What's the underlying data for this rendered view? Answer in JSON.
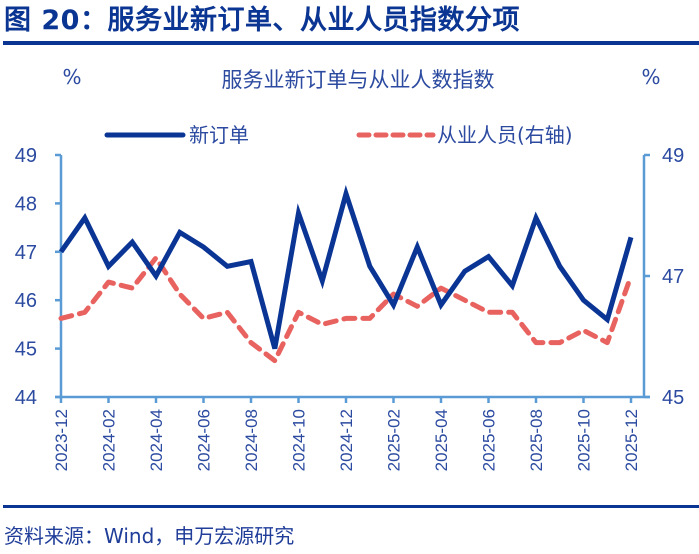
{
  "figure": {
    "title": "图 20：服务业新订单、从业人员指数分项",
    "source": "资料来源：Wind，申万宏源研究",
    "colors": {
      "brand": "#0b3592",
      "axis": "#5b9bd5",
      "text": "#2b4aa0"
    }
  },
  "chart_data": {
    "type": "line",
    "title": "服务业新订单与从业人数指数",
    "xlabel": "",
    "ylabel": "%",
    "ylabel_right": "%",
    "ylim": [
      44,
      49
    ],
    "ylim_right": [
      45,
      49
    ],
    "yticks": [
      44,
      45,
      46,
      47,
      48,
      49
    ],
    "yticks_right": [
      45,
      47,
      49
    ],
    "grid": false,
    "legend_position": "top",
    "x": [
      "2023-12",
      "2024-01",
      "2024-02",
      "2024-03",
      "2024-04",
      "2024-05",
      "2024-06",
      "2024-07",
      "2024-08",
      "2024-09",
      "2024-10",
      "2024-11",
      "2024-12",
      "2025-01",
      "2025-02",
      "2025-03",
      "2025-04",
      "2025-05",
      "2025-06",
      "2025-07",
      "2025-08",
      "2025-09",
      "2025-10",
      "2025-11",
      "2025-12"
    ],
    "x_tick_labels": [
      "2023-12",
      "2024-02",
      "2024-04",
      "2024-06",
      "2024-08",
      "2024-10",
      "2024-12",
      "2025-02",
      "2025-04",
      "2025-06",
      "2025-08",
      "2025-10",
      "2025-12"
    ],
    "series": [
      {
        "name": "新订单",
        "axis": "left",
        "style": "solid",
        "color": "#0a3595",
        "values": [
          47.0,
          47.7,
          46.7,
          47.2,
          46.5,
          47.4,
          47.1,
          46.7,
          46.8,
          45.0,
          47.8,
          46.4,
          48.2,
          46.7,
          45.9,
          47.1,
          45.9,
          46.6,
          46.9,
          46.3,
          47.7,
          46.7,
          46.0,
          45.6,
          47.3
        ]
      },
      {
        "name": "从业人员(右轴)",
        "axis": "right",
        "style": "dashed",
        "color": "#e8625f",
        "values": [
          46.3,
          46.4,
          46.9,
          46.8,
          47.3,
          46.7,
          46.3,
          46.4,
          45.9,
          45.6,
          46.4,
          46.2,
          46.3,
          46.3,
          46.7,
          46.5,
          46.8,
          46.6,
          46.4,
          46.4,
          45.9,
          45.9,
          46.1,
          45.9,
          47.0
        ]
      }
    ]
  }
}
